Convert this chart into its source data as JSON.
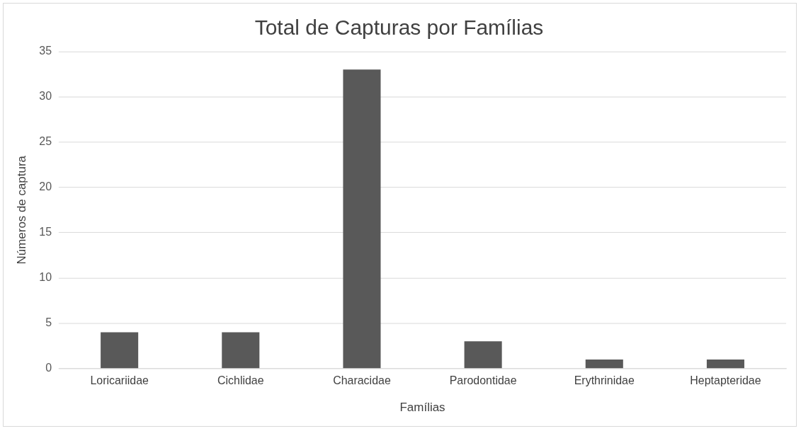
{
  "chart_data": {
    "type": "bar",
    "title": "Total de Capturas por Famílias",
    "xlabel": "Famílias",
    "ylabel": "Números de captura",
    "categories": [
      "Loricariidae",
      "Cichlidae",
      "Characidae",
      "Parodontidae",
      "Erythrinidae",
      "Heptapteridae"
    ],
    "values": [
      4,
      4,
      33,
      3,
      1,
      1
    ],
    "color": "#595959",
    "ylim": [
      0,
      35
    ],
    "yticks": [
      0,
      5,
      10,
      15,
      20,
      25,
      30,
      35
    ],
    "grid": "y",
    "legend": false
  }
}
